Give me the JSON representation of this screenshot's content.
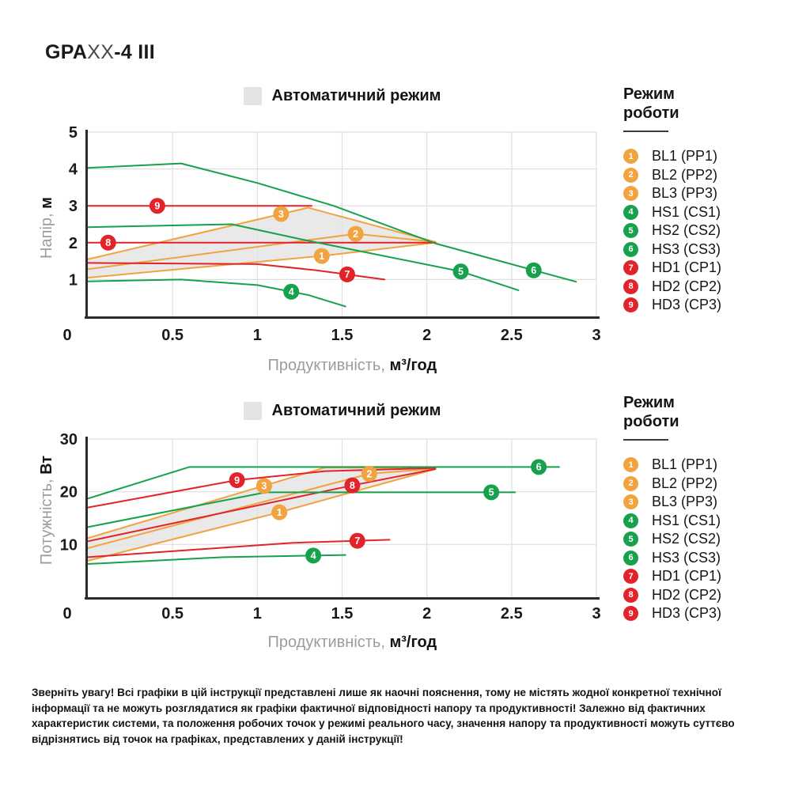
{
  "page": {
    "model_title": {
      "prefix": "GPA",
      "variable": "XX",
      "suffix": "-4 III"
    },
    "disclaimer": "Зверніть увагу! Всі графіки в цій інструкції представлені лише як наочні пояснення, тому не містять жодної конкретної технічної інформації та не можуть розглядатися як графіки фактичної відповідності напору та продуктивності! Залежно від фактичних характеристик системи, та положення робочих точок у режимі реального часу, значення напору та продуктивності можуть суттєво відрізнятись від точок на графіках, представлених у даній інструкції!"
  },
  "colors": {
    "orange": "#F0A33F",
    "green": "#18A14D",
    "red": "#E2242A",
    "shade": "#E3E3E3",
    "grid": "#DEDEDE",
    "axis": "#2B2B2B"
  },
  "legend": {
    "title_line1": "Режим",
    "title_line2": "роботи",
    "items": [
      {
        "num": "1",
        "label": "BL1 (PP1)",
        "color": "#F0A33F"
      },
      {
        "num": "2",
        "label": "BL2 (PP2)",
        "color": "#F0A33F"
      },
      {
        "num": "3",
        "label": "BL3 (PP3)",
        "color": "#F0A33F"
      },
      {
        "num": "4",
        "label": "HS1 (CS1)",
        "color": "#18A14D"
      },
      {
        "num": "5",
        "label": "HS2 (CS2)",
        "color": "#18A14D"
      },
      {
        "num": "6",
        "label": "HS3 (CS3)",
        "color": "#18A14D"
      },
      {
        "num": "7",
        "label": "HD1 (CP1)",
        "color": "#E2242A"
      },
      {
        "num": "8",
        "label": "HD2 (CP2)",
        "color": "#E2242A"
      },
      {
        "num": "9",
        "label": "HD3 (CP3)",
        "color": "#E2242A"
      }
    ]
  },
  "chart_data": [
    {
      "type": "line",
      "title": "Автоматичний режим",
      "xlabel_regular": "Продуктивність, ",
      "xlabel_bold": "м³/год",
      "ylabel_regular": "Напір, ",
      "ylabel_bold": "м",
      "xlim": [
        0,
        3
      ],
      "ylim": [
        0,
        5
      ],
      "x_ticks": [
        0,
        0.5,
        1,
        1.5,
        2,
        2.5,
        3
      ],
      "y_ticks": [
        0,
        1,
        2,
        3,
        4,
        5
      ],
      "grid": true,
      "legend_position": "right",
      "shaded_region": {
        "label": "Автоматичний режим",
        "color": "#E3E3E3",
        "points": [
          [
            0,
            1.55
          ],
          [
            1.3,
            2.95
          ],
          [
            2.05,
            2.01
          ],
          [
            1.4,
            1.65
          ],
          [
            0,
            1.05
          ]
        ]
      },
      "series": [
        {
          "name": "BL1 (PP1)",
          "marker_num": "1",
          "color": "#F0A33F",
          "points": [
            [
              0,
              1.05
            ],
            [
              1.4,
              1.65
            ],
            [
              2.05,
              2.0
            ]
          ],
          "marker_at": [
            1.38,
            1.64
          ]
        },
        {
          "name": "BL2 (PP2)",
          "marker_num": "2",
          "color": "#F0A33F",
          "points": [
            [
              0,
              1.28
            ],
            [
              1.58,
              2.24
            ],
            [
              2.05,
              2.02
            ]
          ],
          "marker_at": [
            1.58,
            2.24
          ]
        },
        {
          "name": "BL3 (PP3)",
          "marker_num": "3",
          "color": "#F0A33F",
          "points": [
            [
              0,
              1.55
            ],
            [
              1.3,
              2.95
            ],
            [
              2.05,
              2.02
            ]
          ],
          "marker_at": [
            1.14,
            2.78
          ]
        },
        {
          "name": "HD1 (CP1)",
          "marker_num": "7",
          "color": "#E2242A",
          "points": [
            [
              0,
              1.45
            ],
            [
              1.0,
              1.42
            ],
            [
              1.35,
              1.25
            ],
            [
              1.75,
              1.0
            ]
          ],
          "marker_at": [
            1.53,
            1.14
          ]
        },
        {
          "name": "HD2 (CP2)",
          "marker_num": "8",
          "color": "#E2242A",
          "points": [
            [
              0,
              2.0
            ],
            [
              2.05,
              2.0
            ]
          ],
          "marker_at": [
            0.12,
            2.0
          ]
        },
        {
          "name": "HD3 (CP3)",
          "marker_num": "9",
          "color": "#E2242A",
          "points": [
            [
              0,
              3.0
            ],
            [
              1.32,
              3.0
            ]
          ],
          "marker_at": [
            0.41,
            3.0
          ]
        },
        {
          "name": "HS1 (CS1)",
          "marker_num": "4",
          "color": "#18A14D",
          "points": [
            [
              0,
              0.95
            ],
            [
              0.55,
              1.0
            ],
            [
              1.0,
              0.85
            ],
            [
              1.3,
              0.58
            ],
            [
              1.52,
              0.27
            ]
          ],
          "marker_at": [
            1.2,
            0.67
          ]
        },
        {
          "name": "HS2 (CS2)",
          "marker_num": "5",
          "color": "#18A14D",
          "points": [
            [
              0,
              2.42
            ],
            [
              0.85,
              2.5
            ],
            [
              1.25,
              2.1
            ],
            [
              2.2,
              1.22
            ],
            [
              2.54,
              0.71
            ]
          ],
          "marker_at": [
            2.2,
            1.22
          ]
        },
        {
          "name": "HS3 (CS3)",
          "marker_num": "6",
          "color": "#18A14D",
          "points": [
            [
              0,
              4.03
            ],
            [
              0.55,
              4.15
            ],
            [
              1.0,
              3.62
            ],
            [
              1.45,
              3.0
            ],
            [
              2.05,
              1.98
            ],
            [
              2.88,
              0.94
            ]
          ],
          "marker_at": [
            2.63,
            1.25
          ]
        }
      ]
    },
    {
      "type": "line",
      "title": "Автоматичний режим",
      "xlabel_regular": "Продуктивність, ",
      "xlabel_bold": "м³/год",
      "ylabel_regular": "Потужність, ",
      "ylabel_bold": "Вт",
      "xlim": [
        0,
        3
      ],
      "ylim": [
        0,
        30
      ],
      "x_ticks": [
        0,
        0.5,
        1,
        1.5,
        2,
        2.5,
        3
      ],
      "y_ticks": [
        0,
        10,
        20,
        30
      ],
      "grid": true,
      "legend_position": "right",
      "shaded_region": {
        "label": "Автоматичний режим",
        "color": "#E3E3E3",
        "points": [
          [
            0,
            11.2
          ],
          [
            1.4,
            24.6
          ],
          [
            2.05,
            24.4
          ],
          [
            1.13,
            16.1
          ],
          [
            0,
            6.9
          ]
        ]
      },
      "series": [
        {
          "name": "BL1 (PP1)",
          "marker_num": "1",
          "color": "#F0A33F",
          "points": [
            [
              0,
              6.9
            ],
            [
              1.13,
              16.1
            ],
            [
              2.05,
              24.3
            ]
          ],
          "marker_at": [
            1.13,
            16.1
          ]
        },
        {
          "name": "BL2 (PP2)",
          "marker_num": "2",
          "color": "#F0A33F",
          "points": [
            [
              0,
              9.3
            ],
            [
              1.66,
              23.4
            ],
            [
              2.05,
              24.4
            ]
          ],
          "marker_at": [
            1.66,
            23.4
          ]
        },
        {
          "name": "BL3 (PP3)",
          "marker_num": "3",
          "color": "#F0A33F",
          "points": [
            [
              0,
              11.2
            ],
            [
              1.4,
              24.6
            ],
            [
              2.05,
              24.5
            ]
          ],
          "marker_at": [
            1.04,
            21.1
          ]
        },
        {
          "name": "HD1 (CP1)",
          "marker_num": "7",
          "color": "#E2242A",
          "points": [
            [
              0,
              7.6
            ],
            [
              1.2,
              10.3
            ],
            [
              1.78,
              10.9
            ]
          ],
          "marker_at": [
            1.59,
            10.7
          ]
        },
        {
          "name": "HD2 (CP2)",
          "marker_num": "8",
          "color": "#E2242A",
          "points": [
            [
              0,
              10.6
            ],
            [
              1.56,
              21.2
            ],
            [
              2.05,
              24.3
            ]
          ],
          "marker_at": [
            1.56,
            21.2
          ]
        },
        {
          "name": "HD3 (CP3)",
          "marker_num": "9",
          "color": "#E2242A",
          "points": [
            [
              0,
              17.0
            ],
            [
              0.88,
              22.2
            ],
            [
              1.4,
              23.9
            ],
            [
              2.05,
              24.5
            ]
          ],
          "marker_at": [
            0.88,
            22.2
          ]
        },
        {
          "name": "HS1 (CS1)",
          "marker_num": "4",
          "color": "#18A14D",
          "points": [
            [
              0,
              6.3
            ],
            [
              0.8,
              7.6
            ],
            [
              1.52,
              8.0
            ]
          ],
          "marker_at": [
            1.33,
            7.9
          ]
        },
        {
          "name": "HS2 (CS2)",
          "marker_num": "5",
          "color": "#18A14D",
          "points": [
            [
              0,
              13.3
            ],
            [
              1.05,
              19.9
            ],
            [
              2.52,
              19.9
            ]
          ],
          "marker_at": [
            2.38,
            19.9
          ]
        },
        {
          "name": "HS3 (CS3)",
          "marker_num": "6",
          "color": "#18A14D",
          "points": [
            [
              0,
              18.7
            ],
            [
              0.6,
              24.7
            ],
            [
              2.78,
              24.7
            ]
          ],
          "marker_at": [
            2.66,
            24.7
          ]
        }
      ]
    }
  ]
}
